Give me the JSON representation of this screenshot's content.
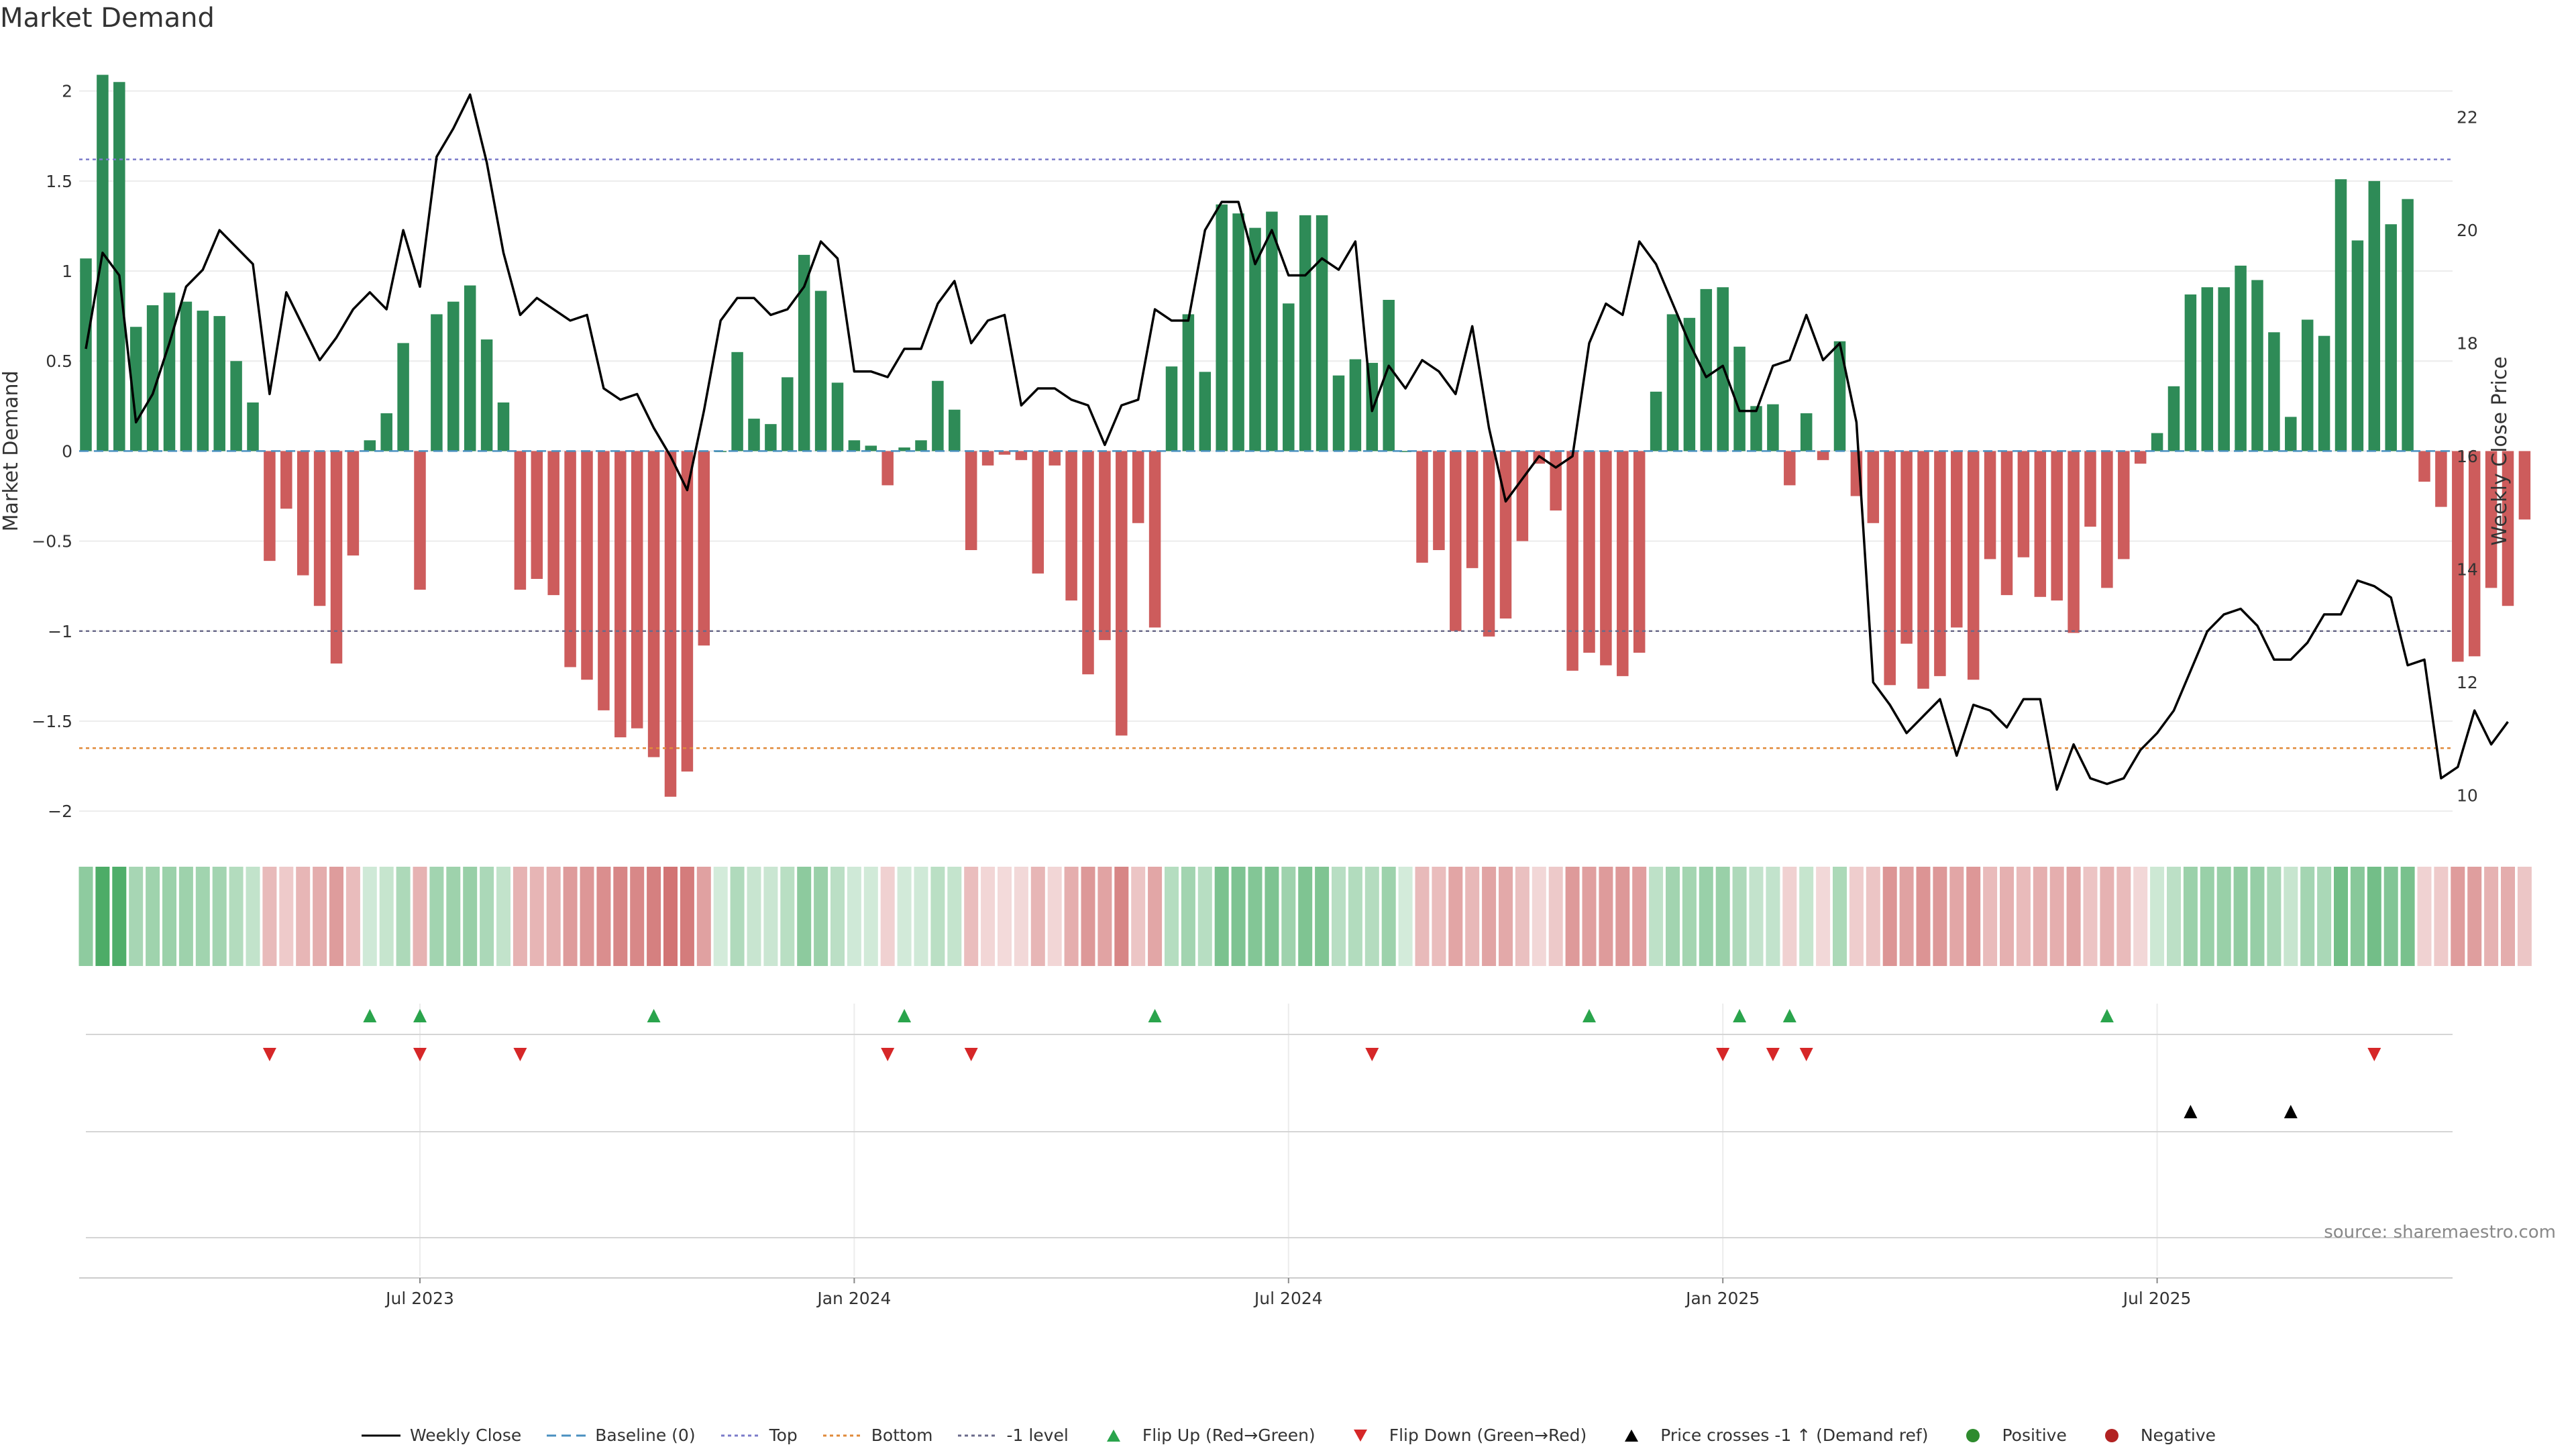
{
  "title": "Market Demand",
  "source": "source: sharemaestro.com",
  "chart_data": {
    "type": "bar",
    "ylabel": "Market Demand",
    "y2label": "Weekly Close Price",
    "ylim": [
      -2.1,
      2.2
    ],
    "y_ticks": [
      {
        "v": 2,
        "label": "2"
      },
      {
        "v": 1.5,
        "label": "1.5"
      },
      {
        "v": 1,
        "label": "1"
      },
      {
        "v": 0.5,
        "label": "0.5"
      },
      {
        "v": 0,
        "label": "0"
      },
      {
        "v": -0.5,
        "label": "−0.5"
      },
      {
        "v": -1,
        "label": "−1"
      },
      {
        "v": -1.5,
        "label": "−1.5"
      },
      {
        "v": -2,
        "label": "−2"
      }
    ],
    "y2lim": [
      9.4,
      23.1
    ],
    "y2_ticks": [
      {
        "v": 22,
        "label": "22"
      },
      {
        "v": 20,
        "label": "20"
      },
      {
        "v": 18,
        "label": "18"
      },
      {
        "v": 16,
        "label": "16"
      },
      {
        "v": 14,
        "label": "14"
      },
      {
        "v": 12,
        "label": "12"
      },
      {
        "v": 10,
        "label": "10"
      }
    ],
    "x_ticks": [
      {
        "i": 20,
        "label": "Jul 2023"
      },
      {
        "i": 46,
        "label": "Jan 2024"
      },
      {
        "i": 72,
        "label": "Jul 2024"
      },
      {
        "i": 98,
        "label": "Jan 2025"
      },
      {
        "i": 124,
        "label": "Jul 2025"
      }
    ],
    "reference_lines": {
      "top": 1.62,
      "bottom": -1.65,
      "minus_one": -1.0,
      "baseline": 0
    },
    "series": [
      {
        "name": "Market Demand",
        "values": [
          1.07,
          2.09,
          2.05,
          0.69,
          0.81,
          0.88,
          0.83,
          0.78,
          0.75,
          0.5,
          0.27,
          -0.61,
          -0.32,
          -0.69,
          -0.86,
          -1.18,
          -0.58,
          0.06,
          0.21,
          0.6,
          -0.77,
          0.76,
          0.83,
          0.92,
          0.62,
          0.27,
          -0.77,
          -0.71,
          -0.8,
          -1.2,
          -1.27,
          -1.44,
          -1.59,
          -1.54,
          -1.7,
          -1.92,
          -1.78,
          -1.08,
          0.0,
          0.55,
          0.18,
          0.15,
          0.41,
          1.09,
          0.89,
          0.38,
          0.06,
          0.03,
          -0.19,
          0.02,
          0.06,
          0.39,
          0.23,
          -0.55,
          -0.08,
          -0.02,
          -0.05,
          -0.68,
          -0.08,
          -0.83,
          -1.24,
          -1.05,
          -1.58,
          -0.4,
          -0.98,
          0.47,
          0.76,
          0.44,
          1.37,
          1.32,
          1.24,
          1.33,
          0.82,
          1.31,
          1.31,
          0.42,
          0.51,
          0.49,
          0.84,
          0.0,
          -0.62,
          -0.55,
          -1.0,
          -0.65,
          -1.03,
          -0.93,
          -0.5,
          -0.07,
          -0.33,
          -1.22,
          -1.12,
          -1.19,
          -1.25,
          -1.12,
          0.33,
          0.76,
          0.74,
          0.9,
          0.91,
          0.58,
          0.25,
          0.26,
          -0.19,
          0.21,
          -0.05,
          0.61,
          -0.25,
          -0.4,
          -1.3,
          -1.07,
          -1.32,
          -1.25,
          -0.98,
          -1.27,
          -0.6,
          -0.8,
          -0.59,
          -0.81,
          -0.83,
          -1.01,
          -0.42,
          -0.76,
          -0.6,
          -0.07,
          0.1,
          0.36,
          0.87,
          0.91,
          0.91,
          1.03,
          0.95,
          0.66,
          0.19,
          0.73,
          0.64,
          1.51,
          1.17,
          1.5,
          1.26,
          1.4,
          -0.17,
          -0.31,
          -1.17,
          -1.14,
          -0.76,
          -0.86,
          -0.38
        ]
      },
      {
        "name": "Weekly Close",
        "values": [
          17.9,
          19.6,
          19.2,
          16.6,
          17.1,
          18.0,
          19.0,
          19.3,
          20.0,
          19.7,
          19.4,
          17.1,
          18.9,
          18.3,
          17.7,
          18.1,
          18.6,
          18.9,
          18.6,
          20.0,
          19.0,
          21.3,
          21.8,
          22.4,
          21.2,
          19.6,
          18.5,
          18.8,
          18.6,
          18.4,
          18.5,
          17.2,
          17.0,
          17.1,
          16.5,
          16.0,
          15.4,
          16.8,
          18.4,
          18.8,
          18.8,
          18.5,
          18.6,
          19.0,
          19.8,
          19.5,
          17.5,
          17.5,
          17.4,
          17.9,
          17.9,
          18.7,
          19.1,
          18.0,
          18.4,
          18.5,
          16.9,
          17.2,
          17.2,
          17.0,
          16.9,
          16.2,
          16.9,
          17.0,
          18.6,
          18.4,
          18.4,
          20.0,
          20.5,
          20.5,
          19.4,
          20.0,
          19.2,
          19.2,
          19.5,
          19.3,
          19.8,
          16.8,
          17.6,
          17.2,
          17.7,
          17.5,
          17.1,
          18.3,
          16.5,
          15.2,
          15.6,
          16.0,
          15.8,
          16.0,
          18.0,
          18.7,
          18.5,
          19.8,
          19.4,
          18.7,
          18.0,
          17.4,
          17.6,
          16.8,
          16.8,
          17.6,
          17.7,
          18.5,
          17.7,
          18.0,
          16.6,
          12.0,
          11.6,
          11.1,
          11.4,
          11.7,
          10.7,
          11.6,
          11.5,
          11.2,
          11.7,
          11.7,
          10.1,
          10.9,
          10.3,
          10.2,
          10.3,
          10.8,
          11.1,
          11.5,
          12.2,
          12.9,
          13.2,
          13.3,
          13.0,
          12.4,
          12.4,
          12.7,
          13.2,
          13.2,
          13.8,
          13.7,
          13.5,
          12.3,
          12.4,
          10.3,
          10.5,
          11.5,
          10.9,
          11.3
        ]
      }
    ],
    "flip_up": [
      17,
      20,
      34,
      49,
      64,
      90,
      99,
      102,
      121
    ],
    "flip_down": [
      11,
      20,
      26,
      48,
      53,
      77,
      98,
      101,
      103,
      137
    ],
    "price_cross_up": [
      126,
      132
    ],
    "legend": [
      {
        "key": "weekly_close",
        "label": "Weekly Close"
      },
      {
        "key": "baseline",
        "label": "Baseline (0)"
      },
      {
        "key": "top",
        "label": "Top"
      },
      {
        "key": "bottom",
        "label": "Bottom"
      },
      {
        "key": "minus_one",
        "label": "-1 level"
      },
      {
        "key": "flip_up",
        "label": "Flip Up (Red→Green)"
      },
      {
        "key": "flip_down",
        "label": "Flip Down (Green→Red)"
      },
      {
        "key": "price_cross",
        "label": "Price crosses -1 ↑ (Demand ref)"
      },
      {
        "key": "positive",
        "label": "Positive"
      },
      {
        "key": "negative",
        "label": "Negative"
      }
    ]
  },
  "colors": {
    "positive": "#2e8b57",
    "negative": "#cd5c5c",
    "top_line": "#7b7bc9",
    "bottom_line": "#e08a3a",
    "minus_one_line": "#6a6a8a",
    "baseline": "#4a90c0",
    "price_line": "#000000",
    "flip_up": "#2aa44c",
    "flip_down": "#d62728",
    "price_cross": "#000000",
    "positive_dot": "#2e8b2e",
    "negative_dot": "#b22222"
  }
}
